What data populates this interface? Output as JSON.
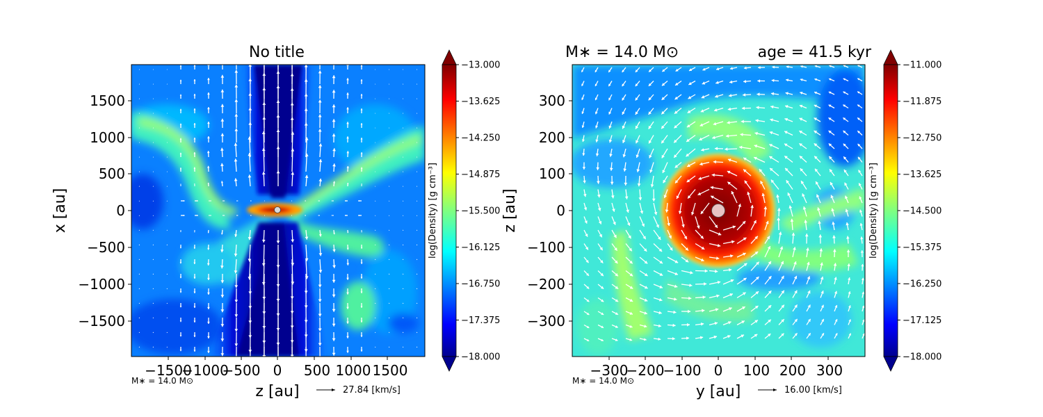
{
  "figure": {
    "left_panel": {
      "title": "No title",
      "xlabel": "z [au]",
      "ylabel": "x [au]",
      "xticks": [
        "−1500",
        "−1000",
        "−500",
        "0",
        "500",
        "1000",
        "1500"
      ],
      "yticks": [
        "1500",
        "1000",
        "500",
        "0",
        "−500",
        "−1000",
        "−1500"
      ],
      "mass_note": "M∗ = 14.0 M⊙",
      "vector_key_label": "27.84 [km/s]",
      "colorbar_label": "log(Density) [g cm⁻³]",
      "colorbar_ticks": [
        "−13.000",
        "−13.625",
        "−14.250",
        "−14.875",
        "−15.500",
        "−16.125",
        "−16.750",
        "−17.375",
        "−18.000"
      ]
    },
    "right_panel": {
      "title_left": "M∗ = 14.0 M⊙",
      "title_right": "age = 41.5 kyr",
      "xlabel": "y [au]",
      "ylabel": "z [au]",
      "xticks": [
        "−300",
        "−200",
        "−100",
        "0",
        "100",
        "200",
        "300"
      ],
      "yticks": [
        "300",
        "200",
        "100",
        "0",
        "−100",
        "−200",
        "−300"
      ],
      "mass_note": "M∗ = 14.0 M⊙",
      "vector_key_label": "16.00 [km/s]",
      "colorbar_label": "log(Density) [g cm⁻³]",
      "colorbar_ticks": [
        "−11.000",
        "−11.875",
        "−12.750",
        "−13.625",
        "−14.500",
        "−15.375",
        "−16.250",
        "−17.125",
        "−18.000"
      ]
    }
  },
  "chart_data": [
    {
      "type": "heatmap",
      "title": "No title",
      "xlabel": "z [au]",
      "ylabel": "x [au]",
      "xlim": [
        -1900,
        1950
      ],
      "ylim": [
        -1950,
        1950
      ],
      "xticks": [
        -1500,
        -1000,
        -500,
        0,
        500,
        1000,
        1500
      ],
      "yticks": [
        1500,
        1000,
        500,
        0,
        -500,
        -1000,
        -1500
      ],
      "colorbar": {
        "label": "log(Density) [g cm⁻³]",
        "range": [
          -18.0,
          -13.0
        ],
        "ticks": [
          -13.0,
          -13.625,
          -14.25,
          -14.875,
          -15.5,
          -16.125,
          -16.75,
          -17.375,
          -18.0
        ],
        "colormap": "jet",
        "extend": "both"
      },
      "features": [
        {
          "kind": "outflow cavity",
          "axis": "z = 0",
          "width_au": 500,
          "log_density": -17.9
        },
        {
          "kind": "disk",
          "center": [
            0,
            0
          ],
          "radius_au": 250,
          "log_density": -13.0
        }
      ],
      "vector_reference": {
        "speed_km_s": 27.84
      },
      "annotation": "M∗ = 14.0 M⊙"
    },
    {
      "type": "heatmap",
      "title": "M∗ = 14.0 M⊙   age = 41.5 kyr",
      "xlabel": "y [au]",
      "ylabel": "z [au]",
      "xlim": [
        -380,
        395
      ],
      "ylim": [
        -390,
        390
      ],
      "xticks": [
        -300,
        -200,
        -100,
        0,
        100,
        200,
        300
      ],
      "yticks": [
        300,
        200,
        100,
        0,
        -100,
        -200,
        -300
      ],
      "colorbar": {
        "label": "log(Density) [g cm⁻³]",
        "range": [
          -18.0,
          -11.0
        ],
        "ticks": [
          -11.0,
          -11.875,
          -12.75,
          -13.625,
          -14.5,
          -15.375,
          -16.25,
          -17.125,
          -18.0
        ],
        "colormap": "jet",
        "extend": "both"
      },
      "features": [
        {
          "kind": "disk",
          "center": [
            0,
            0
          ],
          "radius_au": 150,
          "log_density": -11.3
        },
        {
          "kind": "spiral arms",
          "count": 2,
          "log_density": -14.3
        }
      ],
      "vector_reference": {
        "speed_km_s": 16.0
      },
      "annotation": "M∗ = 14.0 M⊙"
    }
  ],
  "colors": {
    "jet_dark_blue": "#00008f",
    "jet_blue": "#0050ff",
    "jet_cyan": "#00c8ff",
    "jet_green": "#60ff9a",
    "jet_yellow": "#ffe000",
    "jet_orange": "#ff8000",
    "jet_red": "#e00000",
    "jet_dark_red": "#800000",
    "arrow": "#ffffff",
    "star_left": "#d9d9d9",
    "star_right": "#e8c4c4"
  }
}
